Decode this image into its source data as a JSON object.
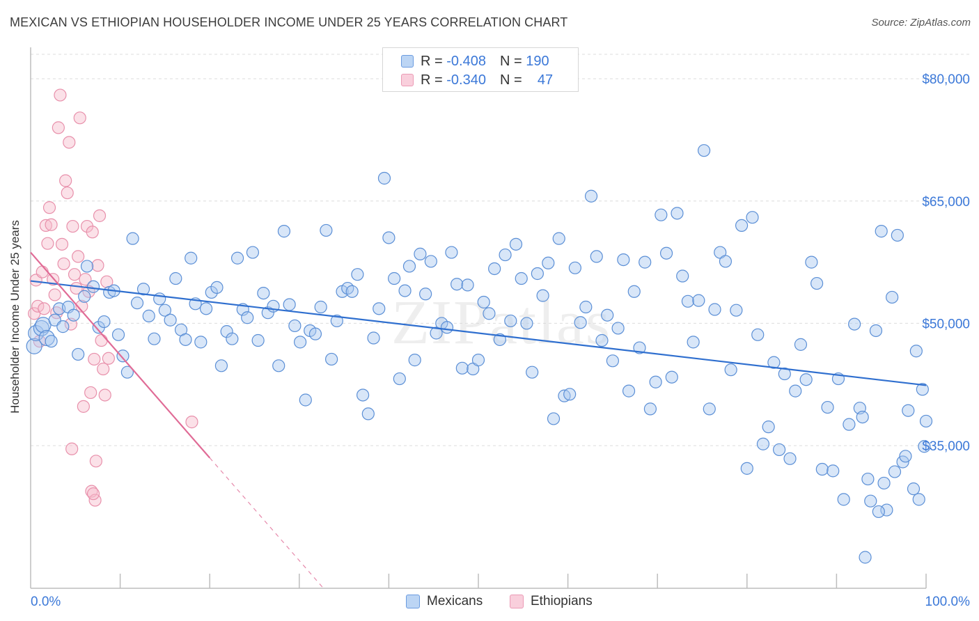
{
  "title": "MEXICAN VS ETHIOPIAN HOUSEHOLDER INCOME UNDER 25 YEARS CORRELATION CHART",
  "source": "Source: ZipAtlas.com",
  "watermark": "ZIPatlas",
  "legend": {
    "r_label": "R =",
    "n_label": "N =",
    "mexicans": {
      "r": "-0.408",
      "n": "190"
    },
    "ethiopians": {
      "r": "-0.340",
      "n": "47"
    }
  },
  "bottom_legend": {
    "mexicans": "Mexicans",
    "ethiopians": "Ethiopians"
  },
  "colors": {
    "mexicans_fill": "#a9c8f0",
    "mexicans_stroke": "#5b8fd6",
    "mexicans_line": "#2f6fcf",
    "ethiopians_fill": "#f7bccd",
    "ethiopians_stroke": "#e890ab",
    "ethiopians_line": "#e06b96",
    "tick_label": "#3b78d8",
    "grid": "#dcdcdc"
  },
  "chart_data": {
    "type": "scatter",
    "title": "MEXICAN VS ETHIOPIAN HOUSEHOLDER INCOME UNDER 25 YEARS CORRELATION CHART",
    "xlabel": "",
    "ylabel": "Householder Income Under 25 years",
    "xlim": [
      0,
      100
    ],
    "ylim": [
      17500,
      83000
    ],
    "x_tick_labels": [
      "0.0%",
      "100.0%"
    ],
    "y_ticks": [
      35000,
      50000,
      65000,
      80000
    ],
    "y_tick_labels": [
      "$35,000",
      "$50,000",
      "$65,000",
      "$80,000"
    ],
    "grid": true,
    "legend_position": "top-center",
    "series": [
      {
        "name": "Mexicans",
        "trend": {
          "x": [
            0,
            100
          ],
          "y": [
            55200,
            42400
          ]
        },
        "points": [
          [
            0.4,
            47200
          ],
          [
            0.6,
            48800
          ],
          [
            1.2,
            49400
          ],
          [
            1.4,
            49800
          ],
          [
            1.8,
            48200
          ],
          [
            2.3,
            47800
          ],
          [
            2.7,
            50400
          ],
          [
            3.2,
            51800
          ],
          [
            3.6,
            49600
          ],
          [
            4.2,
            52000
          ],
          [
            4.8,
            51000
          ],
          [
            5.3,
            46200
          ],
          [
            6.0,
            53300
          ],
          [
            6.3,
            57000
          ],
          [
            7.0,
            54500
          ],
          [
            7.6,
            49500
          ],
          [
            8.2,
            50200
          ],
          [
            8.8,
            53800
          ],
          [
            9.3,
            54000
          ],
          [
            9.8,
            48600
          ],
          [
            10.3,
            46000
          ],
          [
            10.8,
            44000
          ],
          [
            11.4,
            60400
          ],
          [
            11.9,
            52500
          ],
          [
            12.6,
            54200
          ],
          [
            13.2,
            50900
          ],
          [
            13.8,
            48100
          ],
          [
            14.4,
            53000
          ],
          [
            15.0,
            51600
          ],
          [
            15.6,
            50400
          ],
          [
            16.2,
            55500
          ],
          [
            16.8,
            49200
          ],
          [
            17.3,
            48000
          ],
          [
            17.9,
            58000
          ],
          [
            18.4,
            52400
          ],
          [
            19.0,
            47700
          ],
          [
            19.6,
            51800
          ],
          [
            20.2,
            53800
          ],
          [
            20.8,
            54400
          ],
          [
            21.3,
            44800
          ],
          [
            21.9,
            49000
          ],
          [
            22.5,
            48100
          ],
          [
            23.1,
            58000
          ],
          [
            23.7,
            51700
          ],
          [
            24.2,
            50700
          ],
          [
            24.8,
            58700
          ],
          [
            25.4,
            47900
          ],
          [
            26.0,
            53700
          ],
          [
            26.5,
            51300
          ],
          [
            27.1,
            52100
          ],
          [
            27.7,
            44800
          ],
          [
            28.3,
            61300
          ],
          [
            28.9,
            52300
          ],
          [
            29.5,
            49700
          ],
          [
            30.1,
            47700
          ],
          [
            30.7,
            40600
          ],
          [
            31.2,
            49100
          ],
          [
            31.8,
            48700
          ],
          [
            32.4,
            52000
          ],
          [
            33.0,
            61400
          ],
          [
            33.6,
            45600
          ],
          [
            34.2,
            50300
          ],
          [
            34.8,
            53900
          ],
          [
            35.4,
            54300
          ],
          [
            35.9,
            53900
          ],
          [
            36.5,
            56000
          ],
          [
            37.1,
            41200
          ],
          [
            37.7,
            38900
          ],
          [
            38.3,
            48200
          ],
          [
            38.9,
            51800
          ],
          [
            39.5,
            67800
          ],
          [
            40.0,
            60500
          ],
          [
            40.6,
            55500
          ],
          [
            41.2,
            43200
          ],
          [
            41.8,
            54000
          ],
          [
            42.3,
            57000
          ],
          [
            42.9,
            45500
          ],
          [
            43.5,
            58500
          ],
          [
            44.1,
            53600
          ],
          [
            44.7,
            57600
          ],
          [
            45.3,
            48800
          ],
          [
            45.9,
            50000
          ],
          [
            46.5,
            49500
          ],
          [
            47.0,
            58700
          ],
          [
            47.6,
            54800
          ],
          [
            48.2,
            44500
          ],
          [
            48.8,
            54700
          ],
          [
            49.4,
            44400
          ],
          [
            50.0,
            45500
          ],
          [
            50.6,
            52600
          ],
          [
            51.2,
            51200
          ],
          [
            51.8,
            56700
          ],
          [
            52.4,
            48000
          ],
          [
            53.0,
            58400
          ],
          [
            53.6,
            50300
          ],
          [
            54.2,
            59700
          ],
          [
            54.8,
            55500
          ],
          [
            55.4,
            50000
          ],
          [
            56.0,
            44000
          ],
          [
            56.6,
            56100
          ],
          [
            57.2,
            53400
          ],
          [
            57.8,
            57400
          ],
          [
            58.4,
            38300
          ],
          [
            59.0,
            60400
          ],
          [
            59.6,
            41100
          ],
          [
            60.2,
            41300
          ],
          [
            60.8,
            56800
          ],
          [
            61.4,
            50100
          ],
          [
            62.0,
            52000
          ],
          [
            62.6,
            65600
          ],
          [
            63.2,
            58200
          ],
          [
            63.8,
            47900
          ],
          [
            64.4,
            51000
          ],
          [
            65.0,
            45400
          ],
          [
            65.6,
            49400
          ],
          [
            66.2,
            57800
          ],
          [
            66.8,
            41700
          ],
          [
            67.4,
            53900
          ],
          [
            68.0,
            47000
          ],
          [
            68.6,
            57500
          ],
          [
            69.2,
            39500
          ],
          [
            69.8,
            42800
          ],
          [
            70.4,
            63300
          ],
          [
            71.0,
            58600
          ],
          [
            71.6,
            43400
          ],
          [
            72.2,
            63500
          ],
          [
            72.8,
            55800
          ],
          [
            73.4,
            52700
          ],
          [
            74.0,
            47700
          ],
          [
            74.6,
            52800
          ],
          [
            75.2,
            71200
          ],
          [
            75.8,
            39500
          ],
          [
            76.4,
            51700
          ],
          [
            77.0,
            58700
          ],
          [
            77.6,
            57600
          ],
          [
            78.2,
            44300
          ],
          [
            78.8,
            51600
          ],
          [
            79.4,
            62000
          ],
          [
            80.0,
            32200
          ],
          [
            80.6,
            63000
          ],
          [
            81.2,
            48600
          ],
          [
            81.8,
            35200
          ],
          [
            82.4,
            37300
          ],
          [
            83.0,
            45200
          ],
          [
            83.6,
            34500
          ],
          [
            84.2,
            43800
          ],
          [
            84.8,
            33400
          ],
          [
            85.4,
            41700
          ],
          [
            86.0,
            47400
          ],
          [
            86.6,
            43100
          ],
          [
            87.2,
            57500
          ],
          [
            87.8,
            54900
          ],
          [
            88.4,
            32100
          ],
          [
            89.0,
            39700
          ],
          [
            89.6,
            31900
          ],
          [
            90.2,
            43200
          ],
          [
            90.8,
            28400
          ],
          [
            91.4,
            37600
          ],
          [
            92.0,
            49900
          ],
          [
            92.6,
            39600
          ],
          [
            93.2,
            21300
          ],
          [
            93.8,
            28200
          ],
          [
            94.4,
            49100
          ],
          [
            95.0,
            61300
          ],
          [
            95.6,
            27100
          ],
          [
            96.2,
            53200
          ],
          [
            96.8,
            60800
          ],
          [
            97.4,
            33000
          ],
          [
            98.0,
            39300
          ],
          [
            98.6,
            29700
          ],
          [
            99.2,
            28400
          ],
          [
            99.6,
            41900
          ],
          [
            100.0,
            38000
          ],
          [
            99.8,
            34900
          ],
          [
            98.9,
            46600
          ],
          [
            97.7,
            33700
          ],
          [
            96.5,
            31800
          ],
          [
            95.3,
            30400
          ],
          [
            94.7,
            26900
          ],
          [
            93.5,
            30900
          ],
          [
            92.9,
            38500
          ]
        ]
      },
      {
        "name": "Ethiopians",
        "trend": {
          "x": [
            0,
            20
          ],
          "y": [
            58700,
            33500
          ]
        },
        "points": [
          [
            0.4,
            51200
          ],
          [
            0.6,
            55300
          ],
          [
            0.8,
            52100
          ],
          [
            1.0,
            47800
          ],
          [
            1.3,
            56300
          ],
          [
            1.5,
            51800
          ],
          [
            1.7,
            62000
          ],
          [
            1.9,
            59800
          ],
          [
            2.1,
            64200
          ],
          [
            2.3,
            62100
          ],
          [
            2.5,
            55400
          ],
          [
            2.7,
            53500
          ],
          [
            2.9,
            51300
          ],
          [
            3.1,
            74000
          ],
          [
            3.3,
            78000
          ],
          [
            3.5,
            59700
          ],
          [
            3.7,
            57300
          ],
          [
            3.9,
            67500
          ],
          [
            4.1,
            66000
          ],
          [
            4.3,
            72200
          ],
          [
            4.5,
            49900
          ],
          [
            4.7,
            61900
          ],
          [
            4.9,
            56000
          ],
          [
            5.1,
            54300
          ],
          [
            5.3,
            58200
          ],
          [
            5.5,
            75200
          ],
          [
            5.7,
            52100
          ],
          [
            5.9,
            39800
          ],
          [
            6.1,
            55400
          ],
          [
            6.3,
            61900
          ],
          [
            6.5,
            53900
          ],
          [
            6.7,
            41500
          ],
          [
            6.9,
            61200
          ],
          [
            7.1,
            45600
          ],
          [
            7.3,
            33100
          ],
          [
            7.5,
            57100
          ],
          [
            7.7,
            63200
          ],
          [
            7.9,
            47900
          ],
          [
            8.1,
            44400
          ],
          [
            8.3,
            41200
          ],
          [
            8.5,
            55100
          ],
          [
            8.7,
            45700
          ],
          [
            4.6,
            34600
          ],
          [
            6.8,
            29400
          ],
          [
            7.2,
            28300
          ],
          [
            7.0,
            29100
          ],
          [
            18.0,
            37900
          ]
        ]
      }
    ]
  }
}
